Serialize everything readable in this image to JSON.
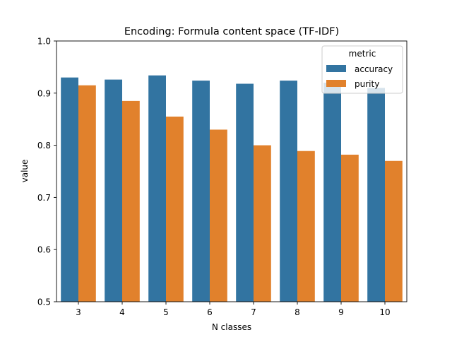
{
  "chart_data": {
    "type": "bar",
    "title": "Encoding: Formula content space (TF-IDF)",
    "xlabel": "N classes",
    "ylabel": "value",
    "categories": [
      "3",
      "4",
      "5",
      "6",
      "7",
      "8",
      "9",
      "10"
    ],
    "ylim": [
      0.5,
      1.0
    ],
    "yticks": [
      "0.5",
      "0.6",
      "0.7",
      "0.8",
      "0.9",
      "1.0"
    ],
    "grid": false,
    "legend": {
      "title": "metric",
      "placement": "top-right"
    },
    "series": [
      {
        "name": "accuracy",
        "color": "#3274a1",
        "values": [
          0.93,
          0.926,
          0.934,
          0.924,
          0.918,
          0.924,
          0.92,
          0.91
        ]
      },
      {
        "name": "purity",
        "color": "#e1812c",
        "values": [
          0.915,
          0.885,
          0.855,
          0.83,
          0.8,
          0.789,
          0.782,
          0.77
        ]
      }
    ]
  }
}
